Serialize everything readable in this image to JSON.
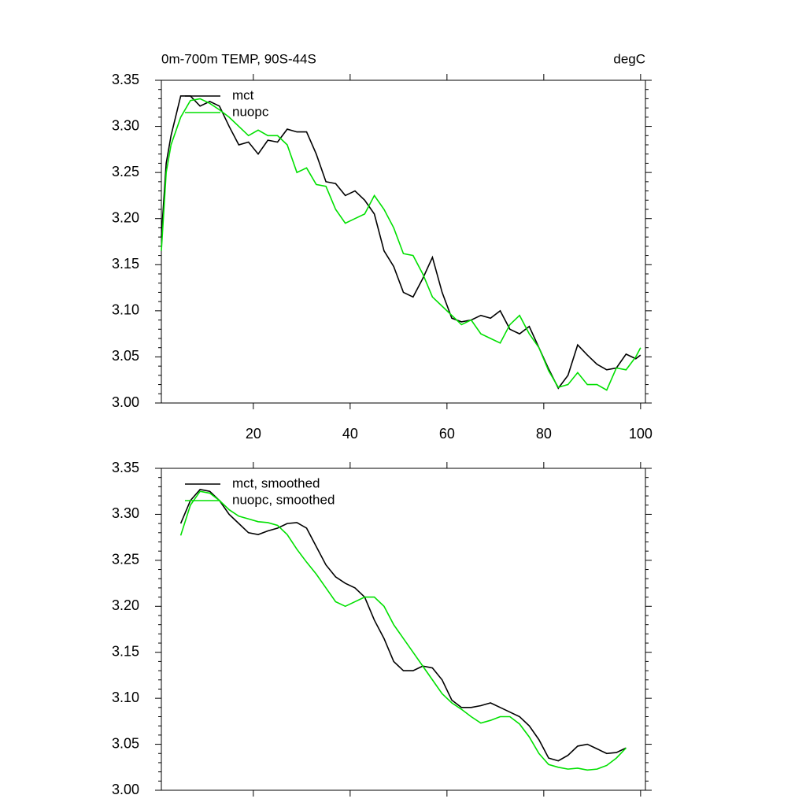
{
  "chart_data": [
    {
      "type": "line",
      "title": "0m-700m TEMP, 90S-44S",
      "unit_label": "degC",
      "x": [
        1,
        2,
        3,
        5,
        7,
        9,
        11,
        13,
        15,
        17,
        19,
        21,
        23,
        25,
        27,
        29,
        31,
        33,
        35,
        37,
        39,
        41,
        43,
        45,
        47,
        49,
        51,
        53,
        55,
        57,
        59,
        61,
        63,
        65,
        67,
        69,
        71,
        73,
        75,
        77,
        79,
        81,
        83,
        85,
        87,
        89,
        91,
        93,
        95,
        97,
        99,
        100
      ],
      "series": [
        {
          "name": "mct",
          "color": "#000000",
          "values": [
            3.18,
            3.26,
            3.29,
            3.333,
            3.333,
            3.322,
            3.327,
            3.322,
            3.3,
            3.28,
            3.283,
            3.27,
            3.285,
            3.283,
            3.297,
            3.294,
            3.294,
            3.27,
            3.24,
            3.238,
            3.225,
            3.23,
            3.22,
            3.205,
            3.165,
            3.148,
            3.12,
            3.115,
            3.135,
            3.158,
            3.12,
            3.092,
            3.088,
            3.09,
            3.095,
            3.092,
            3.1,
            3.08,
            3.075,
            3.083,
            3.06,
            3.037,
            3.016,
            3.03,
            3.063,
            3.052,
            3.042,
            3.036,
            3.038,
            3.053,
            3.048,
            3.052
          ]
        },
        {
          "name": "nuopc",
          "color": "#00e000",
          "values": [
            3.165,
            3.25,
            3.28,
            3.31,
            3.328,
            3.33,
            3.325,
            3.318,
            3.31,
            3.3,
            3.29,
            3.296,
            3.29,
            3.29,
            3.28,
            3.25,
            3.255,
            3.237,
            3.235,
            3.21,
            3.195,
            3.2,
            3.205,
            3.225,
            3.21,
            3.19,
            3.162,
            3.16,
            3.14,
            3.115,
            3.105,
            3.095,
            3.085,
            3.09,
            3.075,
            3.07,
            3.065,
            3.085,
            3.095,
            3.075,
            3.06,
            3.035,
            3.017,
            3.02,
            3.033,
            3.02,
            3.02,
            3.014,
            3.038,
            3.036,
            3.05,
            3.06
          ]
        }
      ],
      "xlim": [
        1,
        101
      ],
      "xticks": [
        20,
        40,
        60,
        80,
        100
      ],
      "xtick_labels": true,
      "ylim": [
        3.0,
        3.35
      ],
      "yticks": [
        {
          "value": 3.0,
          "label": "3.00"
        },
        3.05,
        {
          "value": 3.1,
          "label": "3.10"
        },
        3.15,
        {
          "value": 3.2,
          "label": "3.20"
        },
        3.25,
        {
          "value": 3.3,
          "label": "3.30"
        },
        3.35
      ],
      "legend": "upper left"
    },
    {
      "type": "line",
      "x": [
        5,
        7,
        9,
        11,
        13,
        15,
        17,
        19,
        21,
        23,
        25,
        27,
        29,
        31,
        33,
        35,
        37,
        39,
        41,
        43,
        45,
        47,
        49,
        51,
        53,
        55,
        57,
        59,
        61,
        63,
        65,
        67,
        69,
        71,
        73,
        75,
        77,
        79,
        81,
        83,
        85,
        87,
        89,
        91,
        93,
        95,
        97
      ],
      "series": [
        {
          "name": "mct, smoothed",
          "color": "#000000",
          "values": [
            3.29,
            3.315,
            3.327,
            3.325,
            3.315,
            3.3,
            3.29,
            3.28,
            3.278,
            3.282,
            3.285,
            3.29,
            3.291,
            3.285,
            3.265,
            3.245,
            3.232,
            3.225,
            3.22,
            3.21,
            3.185,
            3.165,
            3.14,
            3.13,
            3.13,
            3.135,
            3.133,
            3.12,
            3.098,
            3.09,
            3.09,
            3.092,
            3.095,
            3.09,
            3.085,
            3.08,
            3.07,
            3.055,
            3.035,
            3.032,
            3.038,
            3.048,
            3.05,
            3.045,
            3.04,
            3.041,
            3.046
          ]
        },
        {
          "name": "nuopc, smoothed",
          "color": "#00e000",
          "values": [
            3.277,
            3.31,
            3.325,
            3.323,
            3.315,
            3.305,
            3.298,
            3.295,
            3.292,
            3.291,
            3.288,
            3.278,
            3.262,
            3.248,
            3.235,
            3.22,
            3.205,
            3.2,
            3.205,
            3.21,
            3.21,
            3.2,
            3.18,
            3.165,
            3.15,
            3.135,
            3.12,
            3.105,
            3.095,
            3.088,
            3.08,
            3.073,
            3.076,
            3.08,
            3.08,
            3.072,
            3.058,
            3.04,
            3.028,
            3.025,
            3.023,
            3.024,
            3.022,
            3.023,
            3.027,
            3.035,
            3.046
          ]
        }
      ],
      "xlim": [
        1,
        101
      ],
      "xticks": [
        20,
        40,
        60,
        80,
        100
      ],
      "xtick_labels": false,
      "ylim": [
        3.0,
        3.35
      ],
      "yticks": [
        {
          "value": 3.0,
          "label": "3.00"
        },
        3.05,
        {
          "value": 3.1,
          "label": "3.10"
        },
        3.15,
        {
          "value": 3.2,
          "label": "3.20"
        },
        3.25,
        {
          "value": 3.3,
          "label": "3.30"
        },
        3.35
      ],
      "legend": "upper left"
    }
  ]
}
